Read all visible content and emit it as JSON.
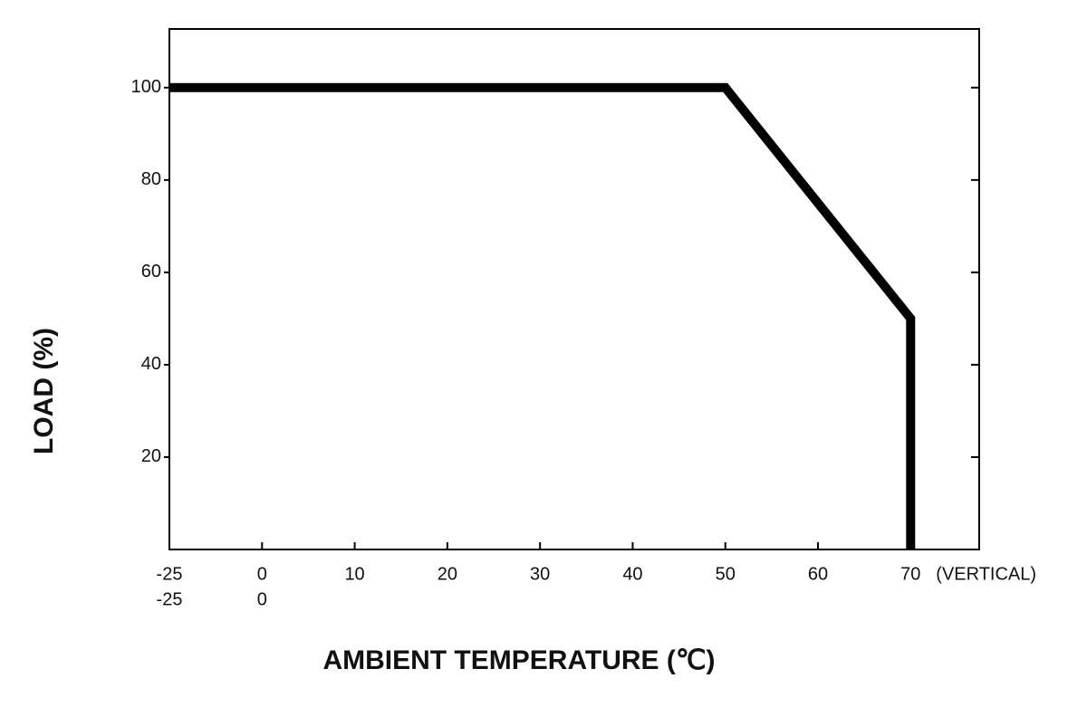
{
  "chart_data": {
    "type": "line",
    "x_label": "AMBIENT TEMPERATURE (℃)",
    "y_label": "LOAD (%)",
    "x": [
      -25,
      50,
      70,
      70
    ],
    "series": [
      {
        "values": [
          100,
          100,
          50,
          0
        ],
        "color": "#000000"
      }
    ],
    "xlim": [
      -25,
      77.4
    ],
    "xticks": [
      -25,
      0,
      10,
      20,
      30,
      40,
      50,
      60,
      70
    ],
    "xticks_row2": [
      -25,
      0
    ],
    "xtick_annotation": "(VERTICAL)",
    "ylim": [
      0,
      112.7
    ],
    "yticks": [
      20,
      40,
      60,
      80,
      100
    ],
    "grid": false
  }
}
